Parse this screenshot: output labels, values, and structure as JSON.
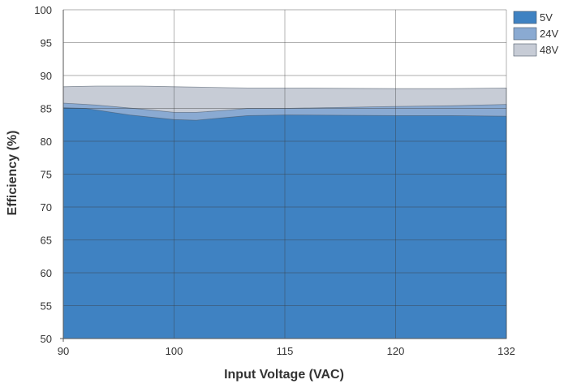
{
  "chart_data": {
    "type": "area",
    "xlabel": "Input Voltage (VAC)",
    "ylabel": "Efficiency (%)",
    "categories": [
      "90",
      "100",
      "115",
      "120",
      "132"
    ],
    "ylim": [
      50,
      100
    ],
    "yticks": [
      "50",
      "55",
      "60",
      "65",
      "70",
      "75",
      "80",
      "85",
      "90",
      "95",
      "100"
    ],
    "grid": true,
    "legend_position": "top-right",
    "series": [
      {
        "name": "48V",
        "color": "#c7ccd6",
        "values": [
          {
            "x": 90,
            "y": 88.3
          },
          {
            "x": 93,
            "y": 88.4
          },
          {
            "x": 97,
            "y": 88.4
          },
          {
            "x": 100,
            "y": 88.3
          },
          {
            "x": 105,
            "y": 88.2
          },
          {
            "x": 110,
            "y": 88.1
          },
          {
            "x": 115,
            "y": 88.1
          },
          {
            "x": 120,
            "y": 88.0
          },
          {
            "x": 126,
            "y": 88.0
          },
          {
            "x": 132,
            "y": 88.1
          }
        ]
      },
      {
        "name": "24V",
        "color": "#8aaad2",
        "values": [
          {
            "x": 90,
            "y": 85.8
          },
          {
            "x": 93,
            "y": 85.5
          },
          {
            "x": 97,
            "y": 84.9
          },
          {
            "x": 100,
            "y": 84.4
          },
          {
            "x": 103,
            "y": 84.4
          },
          {
            "x": 107,
            "y": 84.7
          },
          {
            "x": 110,
            "y": 85.0
          },
          {
            "x": 115,
            "y": 85.0
          },
          {
            "x": 120,
            "y": 85.3
          },
          {
            "x": 126,
            "y": 85.4
          },
          {
            "x": 132,
            "y": 85.6
          }
        ]
      },
      {
        "name": "5V",
        "color": "#3f82c2",
        "values": [
          {
            "x": 90,
            "y": 85.1
          },
          {
            "x": 92,
            "y": 85.0
          },
          {
            "x": 96,
            "y": 84.0
          },
          {
            "x": 100,
            "y": 83.3
          },
          {
            "x": 103,
            "y": 83.2
          },
          {
            "x": 107,
            "y": 83.6
          },
          {
            "x": 110,
            "y": 83.9
          },
          {
            "x": 115,
            "y": 84.0
          },
          {
            "x": 120,
            "y": 83.9
          },
          {
            "x": 126,
            "y": 83.9
          },
          {
            "x": 132,
            "y": 83.8
          }
        ]
      }
    ],
    "legend": [
      {
        "name": "5V",
        "color": "#3f82c2"
      },
      {
        "name": "24V",
        "color": "#8aaad2"
      },
      {
        "name": "48V",
        "color": "#c7ccd6"
      }
    ]
  }
}
